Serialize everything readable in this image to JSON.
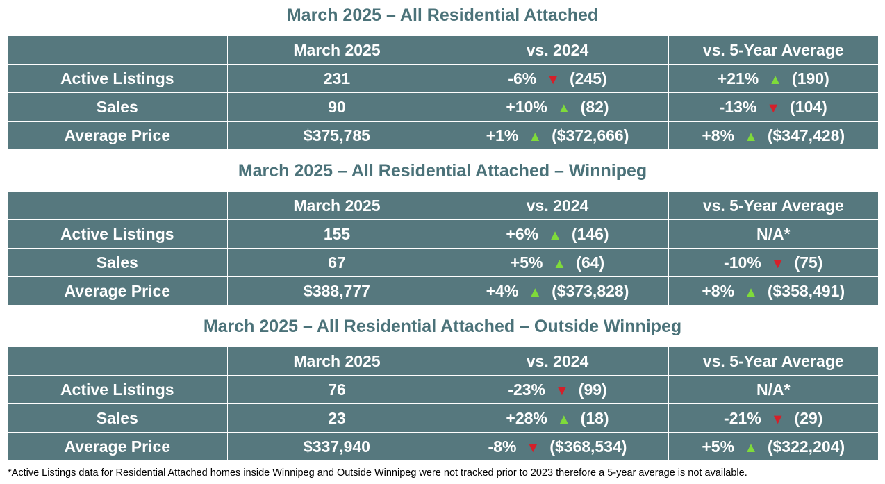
{
  "headers": [
    "",
    "March 2025",
    "vs. 2024",
    "vs. 5-Year Average"
  ],
  "colors": {
    "table_bg": "#56787e",
    "title": "#4b7279",
    "up": "#7fdb3a",
    "down": "#d4202a"
  },
  "sections": [
    {
      "title": "March 2025 – All Residential Attached",
      "rows": [
        {
          "label": "Active Listings",
          "value": "231",
          "vs2024": {
            "pct": "-6%",
            "dir": "down",
            "prev": "(245)"
          },
          "vs5": {
            "pct": "+21%",
            "dir": "up",
            "prev": "(190)"
          }
        },
        {
          "label": "Sales",
          "value": "90",
          "vs2024": {
            "pct": "+10%",
            "dir": "up",
            "prev": "(82)"
          },
          "vs5": {
            "pct": "-13%",
            "dir": "down",
            "prev": "(104)"
          }
        },
        {
          "label": "Average Price",
          "value": "$375,785",
          "vs2024": {
            "pct": "+1%",
            "dir": "up",
            "prev": "($372,666)"
          },
          "vs5": {
            "pct": "+8%",
            "dir": "up",
            "prev": "($347,428)"
          }
        }
      ]
    },
    {
      "title": "March 2025 – All Residential Attached – Winnipeg",
      "rows": [
        {
          "label": "Active Listings",
          "value": "155",
          "vs2024": {
            "pct": "+6%",
            "dir": "up",
            "prev": "(146)"
          },
          "vs5": {
            "na": "N/A*"
          }
        },
        {
          "label": "Sales",
          "value": "67",
          "vs2024": {
            "pct": "+5%",
            "dir": "up",
            "prev": "(64)"
          },
          "vs5": {
            "pct": "-10%",
            "dir": "down",
            "prev": "(75)"
          }
        },
        {
          "label": "Average Price",
          "value": "$388,777",
          "vs2024": {
            "pct": "+4%",
            "dir": "up",
            "prev": "($373,828)"
          },
          "vs5": {
            "pct": "+8%",
            "dir": "up",
            "prev": "($358,491)"
          }
        }
      ]
    },
    {
      "title": "March 2025 – All Residential Attached – Outside Winnipeg",
      "rows": [
        {
          "label": "Active Listings",
          "value": "76",
          "vs2024": {
            "pct": "-23%",
            "dir": "down",
            "prev": "(99)"
          },
          "vs5": {
            "na": "N/A*"
          }
        },
        {
          "label": "Sales",
          "value": "23",
          "vs2024": {
            "pct": "+28%",
            "dir": "up",
            "prev": "(18)"
          },
          "vs5": {
            "pct": "-21%",
            "dir": "down",
            "prev": "(29)"
          }
        },
        {
          "label": "Average Price",
          "value": "$337,940",
          "vs2024": {
            "pct": "-8%",
            "dir": "down",
            "prev": "($368,534)"
          },
          "vs5": {
            "pct": "+5%",
            "dir": "up",
            "prev": "($322,204)"
          }
        }
      ]
    }
  ],
  "footnote": "*Active Listings data for Residential Attached homes inside Winnipeg and Outside Winnipeg were not tracked prior to 2023 therefore a 5-year average is not available."
}
